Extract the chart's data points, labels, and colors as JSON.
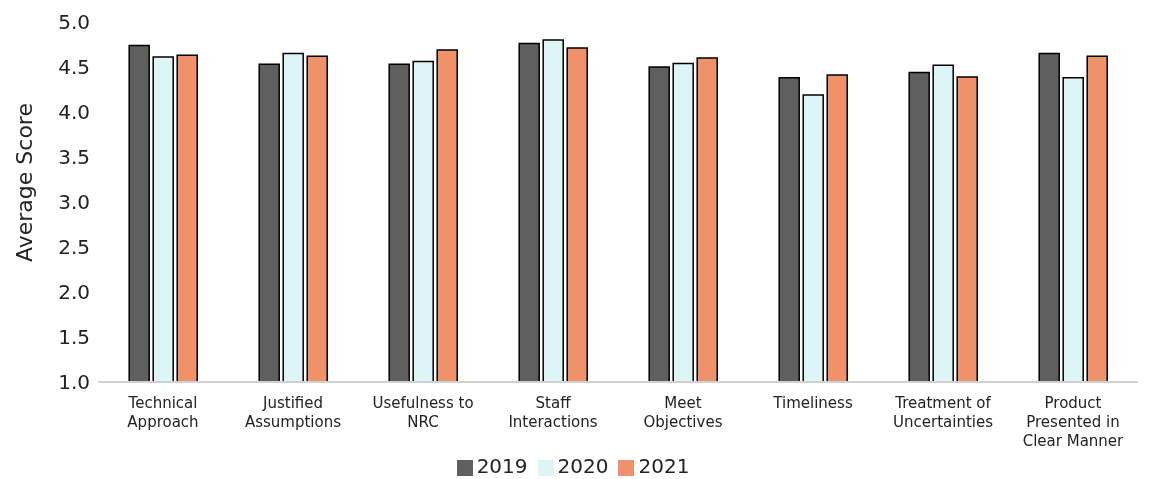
{
  "chart_data": {
    "type": "bar",
    "ylabel": "Average Score",
    "categories": [
      "Technical Approach",
      "Justified Assumptions",
      "Usefulness to NRC",
      "Staff Interactions",
      "Meet Objectives",
      "Timeliness",
      "Treatment of Uncertainties",
      "Product Presented in Clear Manner"
    ],
    "series": [
      {
        "name": "2019",
        "color": "#5f5f5f",
        "values": [
          4.74,
          4.53,
          4.53,
          4.76,
          4.5,
          4.38,
          4.44,
          4.65
        ]
      },
      {
        "name": "2020",
        "color": "#ddf5f7",
        "values": [
          4.61,
          4.65,
          4.56,
          4.8,
          4.54,
          4.19,
          4.52,
          4.38
        ]
      },
      {
        "name": "2021",
        "color": "#ef9169",
        "values": [
          4.63,
          4.62,
          4.69,
          4.71,
          4.6,
          4.41,
          4.39,
          4.62
        ]
      }
    ],
    "ylim": [
      1.0,
      5.0
    ],
    "yticks": [
      {
        "value": 1,
        "label": "1.0"
      },
      {
        "value": 1.5,
        "label": "1.5"
      },
      {
        "value": 2,
        "label": "2.0"
      },
      {
        "value": 2.5,
        "label": "2.5"
      },
      {
        "value": 3,
        "label": "3.0"
      },
      {
        "value": 3.5,
        "label": "3.5"
      },
      {
        "value": 4,
        "label": "4.0"
      },
      {
        "value": 4.5,
        "label": "4.5"
      },
      {
        "value": 5,
        "label": "5.0"
      }
    ],
    "legend": "bottom",
    "grid": false
  }
}
